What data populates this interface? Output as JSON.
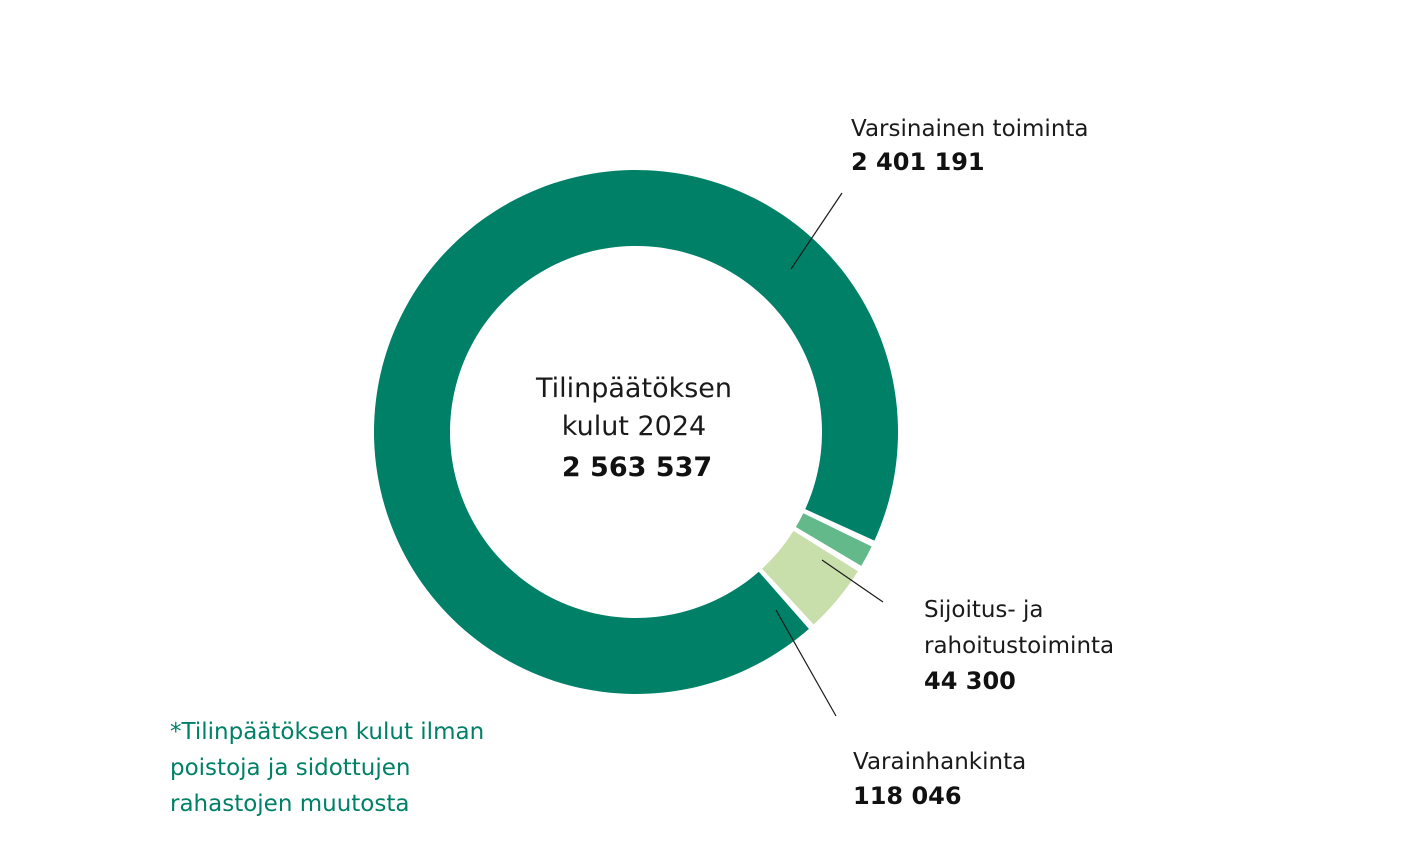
{
  "chart_data": {
    "type": "pie",
    "style": "donut",
    "center": {
      "title_lines": [
        "Tilinpäätöksen",
        "kulut 2024"
      ],
      "total": "2 563 537",
      "total_value": 2563537
    },
    "slices": [
      {
        "name": "Varsinainen toiminta",
        "name_lines": [
          "Varsinainen toiminta"
        ],
        "value": 2401191,
        "value_label": "2 401 191",
        "color": "#008066"
      },
      {
        "name": "Sijoitus- ja rahoitustoiminta",
        "name_lines": [
          "Sijoitus- ja",
          "rahoitustoiminta"
        ],
        "value": 44300,
        "value_label": "44 300",
        "color": "#63b98a"
      },
      {
        "name": "Varainhankinta",
        "name_lines": [
          "Varainhankinta"
        ],
        "value": 118046,
        "value_label": "118 046",
        "color": "#c9dfab"
      }
    ],
    "footnote_lines": [
      "*Tilinpäätöksen kulut ilman",
      "poistoja ja sidottujen",
      "rahastojen muutosta"
    ]
  }
}
